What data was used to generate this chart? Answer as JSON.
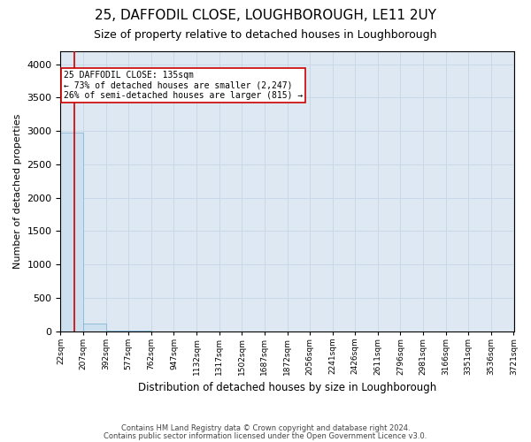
{
  "title": "25, DAFFODIL CLOSE, LOUGHBOROUGH, LE11 2UY",
  "subtitle": "Size of property relative to detached houses in Loughborough",
  "xlabel": "Distribution of detached houses by size in Loughborough",
  "ylabel": "Number of detached properties",
  "footnote1": "Contains HM Land Registry data © Crown copyright and database right 2024.",
  "footnote2": "Contains public sector information licensed under the Open Government Licence v3.0.",
  "bin_edges": [
    22,
    207,
    392,
    577,
    762,
    947,
    1132,
    1317,
    1502,
    1687,
    1872,
    2056,
    2241,
    2426,
    2611,
    2796,
    2981,
    3166,
    3351,
    3536,
    3721
  ],
  "bar_heights": [
    2980,
    110,
    5,
    2,
    1,
    1,
    0,
    0,
    0,
    0,
    0,
    0,
    0,
    0,
    0,
    0,
    0,
    0,
    0,
    0
  ],
  "bar_color": "#cce0f0",
  "bar_edge_color": "#7ab0d0",
  "grid_color": "#c8d8e8",
  "bg_color": "#dde8f2",
  "property_size": 135,
  "property_label": "25 DAFFODIL CLOSE: 135sqm",
  "annotation_line1": "← 73% of detached houses are smaller (2,247)",
  "annotation_line2": "26% of semi-detached houses are larger (815) →",
  "vline_color": "#cc0000",
  "annotation_box_color": "#cc0000",
  "ylim": [
    0,
    4200
  ],
  "yticks": [
    0,
    500,
    1000,
    1500,
    2000,
    2500,
    3000,
    3500,
    4000
  ],
  "title_fontsize": 11,
  "subtitle_fontsize": 9,
  "tick_label_fontsize": 6.5,
  "ylabel_fontsize": 8,
  "xlabel_fontsize": 8.5
}
